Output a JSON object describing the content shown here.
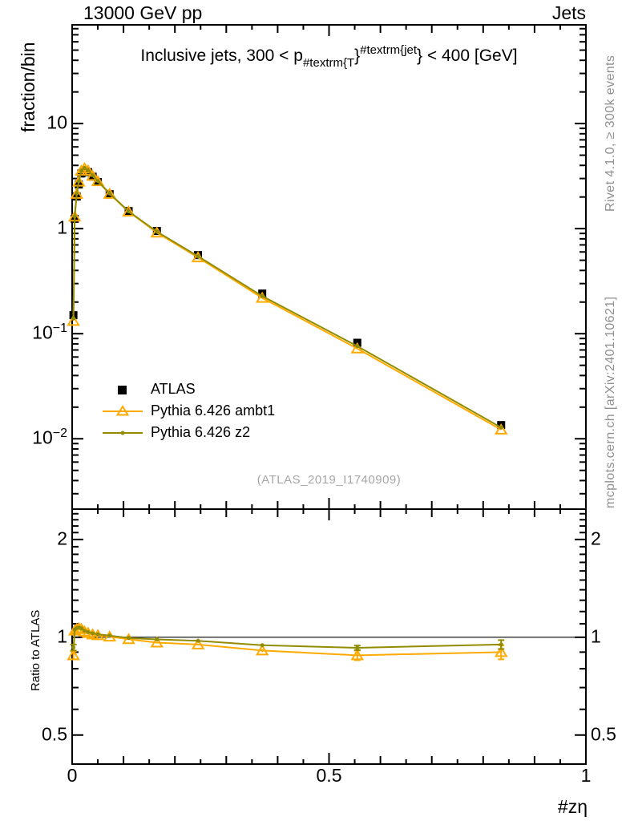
{
  "header": {
    "left": "13000 GeV pp",
    "right": "Jets"
  },
  "main_panel": {
    "ylabel": "fraction/bin",
    "title": {
      "prefix": "Inclusive jets, 300 < p",
      "sub": "#textrm{T",
      "brace": "}",
      "sup": "#textrm{jet",
      "suffix": "} < 400 [GeV]"
    }
  },
  "ratio_panel": {
    "ylabel": "Ratio to ATLAS"
  },
  "xaxis": {
    "label": "#zη"
  },
  "watermark": "(ATLAS_2019_I1740909)",
  "side_notes": {
    "top": "Rivet 4.1.0, ≥ 300k events",
    "bottom": "mcplots.cern.ch [arXiv:2401.10621]"
  },
  "colors": {
    "atlas": "#000000",
    "ambt1": "#ffaa00",
    "z2": "#918c00",
    "frame": "#000000",
    "annotation_gray": "#909090",
    "watermark_gray": "#a6a6a6"
  },
  "legend": [
    {
      "name": "ATLAS",
      "marker": "square",
      "color": "#000000"
    },
    {
      "name": "Pythia 6.426 ambt1",
      "marker": "triangle",
      "color": "#ffaa00"
    },
    {
      "name": "Pythia 6.426 z2",
      "marker": "dot",
      "color": "#918c00"
    }
  ],
  "chart_data": [
    {
      "type": "line",
      "panel": "main",
      "title": "Inclusive jets, 300 < pT^jet < 400 [GeV]",
      "xlabel": "#zη",
      "ylabel": "fraction/bin",
      "yscale": "log",
      "grid": false,
      "xlim": [
        0,
        1.0
      ],
      "ylim": [
        0.00214,
        87
      ],
      "x": [
        0.0025,
        0.005,
        0.009,
        0.013,
        0.018,
        0.024,
        0.031,
        0.04,
        0.05,
        0.073,
        0.11,
        0.165,
        0.245,
        0.37,
        0.555,
        0.835
      ],
      "series": [
        {
          "name": "ATLAS",
          "marker": "square",
          "color": "#000000",
          "line": false,
          "values": [
            0.15,
            1.24,
            2.02,
            2.63,
            3.35,
            3.6,
            3.45,
            3.12,
            2.78,
            2.13,
            1.47,
            0.95,
            0.56,
            0.241,
            0.082,
            0.0135
          ]
        },
        {
          "name": "Pythia 6.426 ambt1",
          "marker": "triangle",
          "color": "#ffaa00",
          "line": true,
          "values": [
            0.132,
            1.3,
            2.14,
            2.8,
            3.55,
            3.74,
            3.56,
            3.18,
            2.82,
            2.14,
            1.45,
            0.915,
            0.532,
            0.219,
            0.0722,
            0.0122
          ]
        },
        {
          "name": "Pythia 6.426 z2",
          "marker": "dot",
          "color": "#918c00",
          "line": true,
          "values": [
            0.14,
            1.31,
            2.16,
            2.82,
            3.57,
            3.77,
            3.58,
            3.21,
            2.84,
            2.16,
            1.46,
            0.936,
            0.546,
            0.228,
            0.0761,
            0.0128
          ]
        }
      ],
      "yticks": [
        {
          "v": 10,
          "t": "10"
        },
        {
          "v": 1,
          "t": "1"
        },
        {
          "v": 0.1,
          "t": "10",
          "e": "−1"
        },
        {
          "v": 0.01,
          "t": "10",
          "e": "−2"
        }
      ],
      "xticks": [
        {
          "v": 0,
          "t": "0"
        },
        {
          "v": 0.5,
          "t": "0.5"
        },
        {
          "v": 1,
          "t": "1"
        }
      ]
    },
    {
      "type": "line",
      "panel": "ratio",
      "title": "Ratio to ATLAS",
      "xlabel": "#zη",
      "ylabel": "Ratio to ATLAS",
      "yscale": "log",
      "grid": false,
      "refline": 1,
      "xlim": [
        0,
        1.0
      ],
      "ylim": [
        0.407,
        2.48
      ],
      "x": [
        0.0025,
        0.005,
        0.009,
        0.013,
        0.018,
        0.024,
        0.031,
        0.04,
        0.05,
        0.073,
        0.11,
        0.165,
        0.245,
        0.37,
        0.555,
        0.835
      ],
      "series": [
        {
          "name": "Pythia 6.426 ambt1",
          "marker": "triangle",
          "color": "#ffaa00",
          "line": true,
          "values": [
            0.88,
            1.048,
            1.06,
            1.065,
            1.06,
            1.042,
            1.031,
            1.02,
            1.014,
            1.004,
            0.986,
            0.963,
            0.95,
            0.91,
            0.88,
            0.9
          ],
          "yerr": [
            0.025,
            0.004,
            0.003,
            0.003,
            0.003,
            0.003,
            0.003,
            0.003,
            0.003,
            0.003,
            0.004,
            0.005,
            0.006,
            0.01,
            0.03,
            0.045
          ]
        },
        {
          "name": "Pythia 6.426 z2",
          "marker": "dot",
          "color": "#918c00",
          "line": true,
          "values": [
            0.93,
            1.055,
            1.068,
            1.072,
            1.066,
            1.047,
            1.037,
            1.028,
            1.021,
            1.012,
            0.995,
            0.985,
            0.975,
            0.945,
            0.928,
            0.95
          ],
          "yerr": [
            0.02,
            0.004,
            0.003,
            0.003,
            0.003,
            0.003,
            0.003,
            0.003,
            0.003,
            0.003,
            0.004,
            0.005,
            0.006,
            0.008,
            0.015,
            0.03
          ]
        }
      ],
      "yticks": [
        {
          "v": 2,
          "t": "2"
        },
        {
          "v": 1,
          "t": "1"
        },
        {
          "v": 0.5,
          "t": "0.5"
        }
      ],
      "xticks": [
        {
          "v": 0,
          "t": "0"
        },
        {
          "v": 0.5,
          "t": "0.5"
        },
        {
          "v": 1,
          "t": "1"
        }
      ]
    }
  ]
}
